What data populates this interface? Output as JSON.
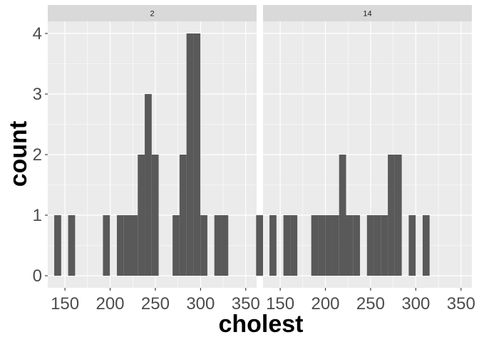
{
  "chart_data": {
    "type": "bar",
    "subtype": "histogram-faceted",
    "xlabel": "cholest",
    "ylabel": "count",
    "xlim": [
      131,
      362
    ],
    "ylim": [
      -0.2,
      4.2
    ],
    "x_ticks": [
      150,
      200,
      250,
      300,
      350
    ],
    "y_ticks": [
      0,
      1,
      2,
      3,
      4
    ],
    "bin_width": 7.7,
    "bin_start": 138.15,
    "bin_count": 30,
    "grid": true,
    "bar_color": "#595959",
    "panel_background": "#ebebeb",
    "strip_background": "#d9d9d9",
    "grid_color": "#ffffff",
    "panels": [
      {
        "label": "2",
        "counts": [
          1,
          0,
          1,
          0,
          0,
          0,
          0,
          1,
          0,
          1,
          1,
          1,
          2,
          3,
          2,
          0,
          0,
          1,
          2,
          4,
          4,
          1,
          0,
          1,
          1,
          0,
          0,
          0,
          0,
          1
        ]
      },
      {
        "label": "14",
        "counts": [
          1,
          0,
          1,
          1,
          0,
          0,
          1,
          1,
          1,
          1,
          2,
          1,
          1,
          0,
          1,
          1,
          1,
          2,
          2,
          0,
          1,
          0,
          1,
          0,
          0,
          0,
          0,
          0,
          0,
          0
        ]
      }
    ]
  }
}
